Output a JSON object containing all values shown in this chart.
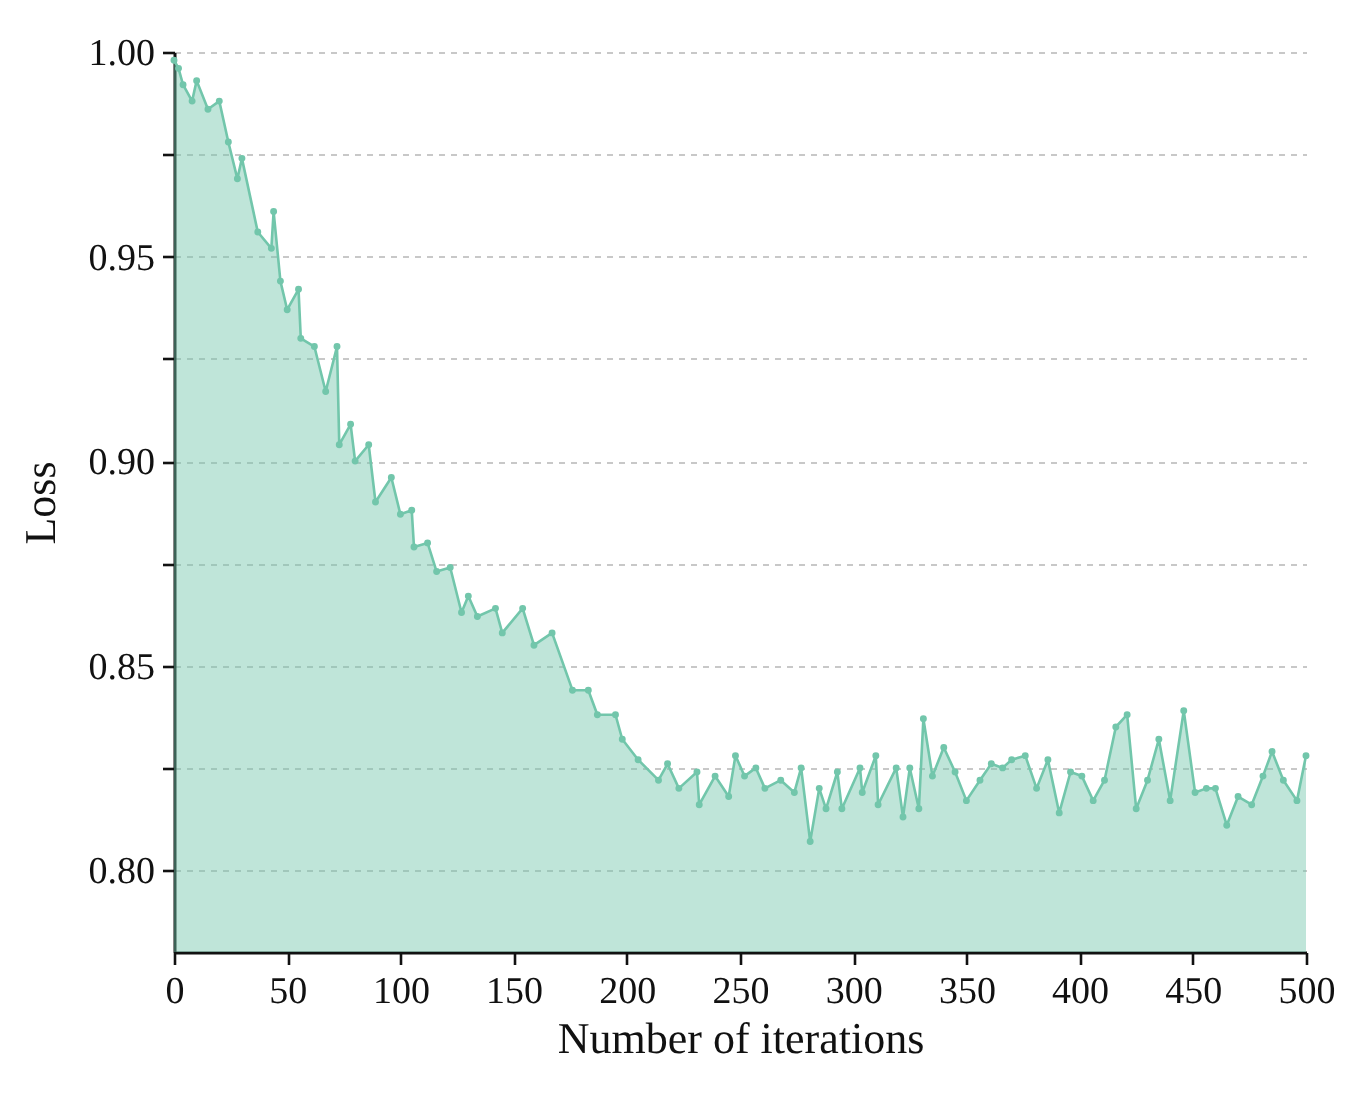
{
  "chart_data": {
    "type": "area",
    "xlabel": "Number of iterations",
    "ylabel": "Loss",
    "xlim": [
      0,
      500
    ],
    "xticks": [
      0,
      50,
      100,
      150,
      200,
      250,
      300,
      350,
      400,
      450,
      500
    ],
    "ylim": [
      0.78,
      1.0
    ],
    "yticks": [
      {
        "value": 0.8,
        "label": "0.80"
      },
      {
        "value": 0.825,
        "label": null
      },
      {
        "value": 0.85,
        "label": "0.85"
      },
      {
        "value": 0.875,
        "label": null
      },
      {
        "value": 0.9,
        "label": "0.90"
      },
      {
        "value": 0.925,
        "label": null
      },
      {
        "value": 0.95,
        "label": "0.95"
      },
      {
        "value": 0.975,
        "label": null
      },
      {
        "value": 1.0,
        "label": "1.00"
      }
    ],
    "grid": "y",
    "marker": "circle",
    "line_style": "solid",
    "series": [
      {
        "color": "#72c6ab",
        "x": [
          0,
          2,
          4,
          8,
          10,
          15,
          20,
          24,
          28,
          30,
          37,
          43,
          44,
          47,
          50,
          55,
          56,
          62,
          67,
          72,
          73,
          78,
          80,
          86,
          89,
          96,
          100,
          105,
          106,
          112,
          116,
          122,
          127,
          130,
          134,
          142,
          145,
          154,
          159,
          167,
          176,
          183,
          187,
          195,
          198,
          205,
          214,
          218,
          223,
          231,
          232,
          239,
          245,
          248,
          252,
          257,
          261,
          268,
          274,
          277,
          281,
          285,
          288,
          293,
          295,
          303,
          304,
          310,
          311,
          319,
          322,
          325,
          329,
          331,
          335,
          340,
          345,
          350,
          356,
          361,
          366,
          370,
          376,
          381,
          386,
          391,
          396,
          401,
          406,
          411,
          416,
          421,
          425,
          430,
          435,
          440,
          446,
          451,
          456,
          460,
          465,
          470,
          476,
          481,
          485,
          490,
          496,
          500
        ],
        "values": [
          0.998,
          0.996,
          0.992,
          0.988,
          0.993,
          0.986,
          0.988,
          0.978,
          0.969,
          0.974,
          0.956,
          0.952,
          0.961,
          0.944,
          0.937,
          0.942,
          0.93,
          0.928,
          0.917,
          0.928,
          0.904,
          0.909,
          0.9,
          0.904,
          0.89,
          0.896,
          0.887,
          0.888,
          0.879,
          0.88,
          0.873,
          0.874,
          0.863,
          0.867,
          0.862,
          0.864,
          0.858,
          0.864,
          0.855,
          0.858,
          0.844,
          0.844,
          0.838,
          0.838,
          0.832,
          0.827,
          0.822,
          0.826,
          0.82,
          0.824,
          0.816,
          0.823,
          0.818,
          0.828,
          0.823,
          0.825,
          0.82,
          0.822,
          0.819,
          0.825,
          0.807,
          0.82,
          0.815,
          0.824,
          0.815,
          0.825,
          0.819,
          0.828,
          0.816,
          0.825,
          0.813,
          0.825,
          0.815,
          0.837,
          0.823,
          0.83,
          0.824,
          0.817,
          0.822,
          0.826,
          0.825,
          0.827,
          0.828,
          0.82,
          0.827,
          0.814,
          0.824,
          0.823,
          0.817,
          0.822,
          0.835,
          0.838,
          0.815,
          0.822,
          0.832,
          0.817,
          0.839,
          0.819,
          0.82,
          0.82,
          0.811,
          0.818,
          0.816,
          0.823,
          0.829,
          0.822,
          0.817,
          0.828
        ]
      }
    ]
  }
}
